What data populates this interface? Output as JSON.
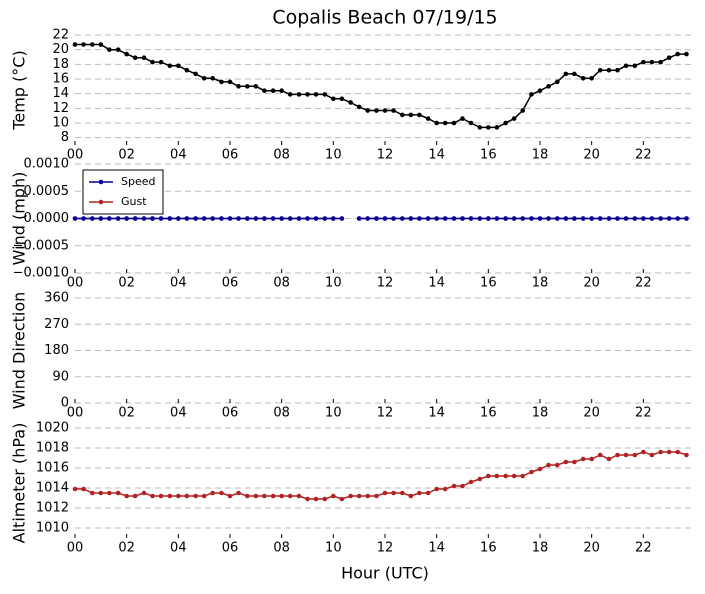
{
  "chart_data": [
    {
      "type": "line",
      "title": "Copalis Beach 07/19/15",
      "ylabel": "Temp (°C)",
      "x": [
        0,
        0.33,
        0.67,
        1,
        1.33,
        1.67,
        2,
        2.33,
        2.67,
        3,
        3.33,
        3.67,
        4,
        4.33,
        4.67,
        5,
        5.33,
        5.67,
        6,
        6.33,
        6.67,
        7,
        7.33,
        7.67,
        8,
        8.33,
        8.67,
        9,
        9.33,
        9.67,
        10,
        10.33,
        10.67,
        11,
        11.33,
        11.67,
        12,
        12.33,
        12.67,
        13,
        13.33,
        13.67,
        14,
        14.33,
        14.67,
        15,
        15.33,
        15.67,
        16,
        16.33,
        16.67,
        17,
        17.33,
        17.67,
        18,
        18.33,
        18.67,
        19,
        19.33,
        19.67,
        20,
        20.33,
        20.67,
        21,
        21.33,
        21.67,
        22,
        22.33,
        22.67,
        23,
        23.33,
        23.67
      ],
      "series": [
        {
          "name": "Temp",
          "color": "#000000",
          "values": [
            20.7,
            20.7,
            20.7,
            20.7,
            20.0,
            20.0,
            19.4,
            18.9,
            18.9,
            18.3,
            18.3,
            17.8,
            17.8,
            17.2,
            16.7,
            16.1,
            16.1,
            15.6,
            15.6,
            15.0,
            15.0,
            15.0,
            14.4,
            14.4,
            14.4,
            13.9,
            13.9,
            13.9,
            13.9,
            13.9,
            13.3,
            13.3,
            12.8,
            12.2,
            11.7,
            11.7,
            11.7,
            11.7,
            11.1,
            11.1,
            11.1,
            10.6,
            10.0,
            10.0,
            10.0,
            10.6,
            10.0,
            9.4,
            9.4,
            9.4,
            10.0,
            10.6,
            11.7,
            13.9,
            14.4,
            15.0,
            15.6,
            16.7,
            16.7,
            16.1,
            16.1,
            17.2,
            17.2,
            17.2,
            17.8,
            17.8,
            18.3,
            18.3,
            18.3,
            18.9,
            19.4,
            19.4
          ]
        }
      ],
      "xlim": [
        0,
        24
      ],
      "xticks": [
        {
          "value": 0,
          "label": "00"
        },
        {
          "value": 2,
          "label": "02"
        },
        {
          "value": 4,
          "label": "04"
        },
        {
          "value": 6,
          "label": "06"
        },
        {
          "value": 8,
          "label": "08"
        },
        10,
        12,
        14,
        16,
        18,
        20,
        22
      ],
      "ylim": [
        7,
        22
      ],
      "yticks": [
        8,
        10,
        12,
        14,
        16,
        18,
        20,
        22
      ],
      "grid": true
    },
    {
      "type": "line",
      "ylabel": "Wind (mph)",
      "legend": "upper left",
      "x": [
        0,
        0.33,
        0.67,
        1,
        1.33,
        1.67,
        2,
        2.33,
        2.67,
        3,
        3.33,
        3.67,
        4,
        4.33,
        4.67,
        5,
        5.33,
        5.67,
        6,
        6.33,
        6.67,
        7,
        7.33,
        7.67,
        8,
        8.33,
        8.67,
        9,
        9.33,
        9.67,
        10,
        10.33,
        10.67,
        11,
        11.33,
        11.67,
        12,
        12.33,
        12.67,
        13,
        13.33,
        13.67,
        14,
        14.33,
        14.67,
        15,
        15.33,
        15.67,
        16,
        16.33,
        16.67,
        17,
        17.33,
        17.67,
        18,
        18.33,
        18.67,
        19,
        19.33,
        19.67,
        20,
        20.33,
        20.67,
        21,
        21.33,
        21.67,
        22,
        22.33,
        22.67,
        23,
        23.33,
        23.67
      ],
      "series": [
        {
          "name": "Speed",
          "color": "#000099",
          "values": [
            0,
            0,
            0,
            0,
            0,
            0,
            0,
            0,
            0,
            0,
            0,
            0,
            0,
            0,
            0,
            0,
            0,
            0,
            0,
            0,
            0,
            0,
            0,
            0,
            0,
            0,
            0,
            0,
            0,
            0,
            0,
            0,
            null,
            0,
            0,
            0,
            0,
            0,
            0,
            0,
            0,
            0,
            0,
            0,
            0,
            0,
            0,
            0,
            0,
            0,
            0,
            0,
            0,
            0,
            0,
            0,
            0,
            0,
            0,
            0,
            0,
            0,
            0,
            0,
            0,
            0,
            0,
            0,
            0,
            0,
            0,
            0
          ]
        },
        {
          "name": "Gust",
          "color": "#b22222",
          "values": [
            0,
            0,
            0,
            0,
            0,
            0,
            0,
            0,
            0,
            0,
            0,
            0,
            0,
            0,
            0,
            0,
            0,
            0,
            0,
            0,
            0,
            0,
            0,
            0,
            0,
            0,
            0,
            0,
            0,
            0,
            0,
            0,
            null,
            0,
            0,
            0,
            0,
            0,
            0,
            0,
            0,
            0,
            0,
            0,
            0,
            0,
            0,
            0,
            0,
            0,
            0,
            0,
            0,
            0,
            0,
            0,
            0,
            0,
            0,
            0,
            0,
            0,
            0,
            0,
            0,
            0,
            0,
            0,
            0,
            0,
            0,
            0
          ]
        }
      ],
      "xlim": [
        0,
        24
      ],
      "xticks": [
        {
          "value": 0,
          "label": "00"
        },
        {
          "value": 2,
          "label": "02"
        },
        {
          "value": 4,
          "label": "04"
        },
        {
          "value": 6,
          "label": "06"
        },
        {
          "value": 8,
          "label": "08"
        },
        10,
        12,
        14,
        16,
        18,
        20,
        22
      ],
      "ylim": [
        -0.001,
        0.001
      ],
      "yticks": [
        {
          "value": -0.001,
          "label": "−0.0010"
        },
        {
          "value": -0.0005,
          "label": "−0.0005"
        },
        {
          "value": 0,
          "label": "0.0000"
        },
        {
          "value": 0.0005,
          "label": "0.0005"
        },
        {
          "value": 0.001,
          "label": "0.0010"
        }
      ],
      "grid": true
    },
    {
      "type": "line",
      "ylabel": "Wind Direction",
      "xlim": [
        0,
        24
      ],
      "xticks": [
        {
          "value": 0,
          "label": "00"
        },
        {
          "value": 2,
          "label": "02"
        },
        {
          "value": 4,
          "label": "04"
        },
        {
          "value": 6,
          "label": "06"
        },
        {
          "value": 8,
          "label": "08"
        },
        10,
        12,
        14,
        16,
        18,
        20,
        22
      ],
      "ylim": [
        0,
        360
      ],
      "yticks": [
        0,
        90,
        180,
        270,
        360
      ],
      "grid": true
    },
    {
      "type": "line",
      "ylabel": "Altimeter (hPa)",
      "xlabel": "Hour (UTC)",
      "x": [
        0,
        0.33,
        0.67,
        1,
        1.33,
        1.67,
        2,
        2.33,
        2.67,
        3,
        3.33,
        3.67,
        4,
        4.33,
        4.67,
        5,
        5.33,
        5.67,
        6,
        6.33,
        6.67,
        7,
        7.33,
        7.67,
        8,
        8.33,
        8.67,
        9,
        9.33,
        9.67,
        10,
        10.33,
        10.67,
        11,
        11.33,
        11.67,
        12,
        12.33,
        12.67,
        13,
        13.33,
        13.67,
        14,
        14.33,
        14.67,
        15,
        15.33,
        15.67,
        16,
        16.33,
        16.67,
        17,
        17.33,
        17.67,
        18,
        18.33,
        18.67,
        19,
        19.33,
        19.67,
        20,
        20.33,
        20.67,
        21,
        21.33,
        21.67,
        22,
        22.33,
        22.67,
        23,
        23.33,
        23.67
      ],
      "series": [
        {
          "name": "Altimeter",
          "color": "#b22222",
          "values": [
            1013.9,
            1013.9,
            1013.5,
            1013.5,
            1013.5,
            1013.5,
            1013.2,
            1013.2,
            1013.5,
            1013.2,
            1013.2,
            1013.2,
            1013.2,
            1013.2,
            1013.2,
            1013.2,
            1013.5,
            1013.5,
            1013.2,
            1013.5,
            1013.2,
            1013.2,
            1013.2,
            1013.2,
            1013.2,
            1013.2,
            1013.2,
            1012.9,
            1012.9,
            1012.9,
            1013.2,
            1012.9,
            1013.2,
            1013.2,
            1013.2,
            1013.2,
            1013.5,
            1013.5,
            1013.5,
            1013.2,
            1013.5,
            1013.5,
            1013.9,
            1013.9,
            1014.2,
            1014.2,
            1014.6,
            1014.9,
            1015.2,
            1015.2,
            1015.2,
            1015.2,
            1015.2,
            1015.6,
            1015.9,
            1016.3,
            1016.3,
            1016.6,
            1016.6,
            1016.9,
            1016.9,
            1017.3,
            1016.9,
            1017.3,
            1017.3,
            1017.3,
            1017.6,
            1017.3,
            1017.6,
            1017.6,
            1017.6,
            1017.3
          ]
        }
      ],
      "xlim": [
        0,
        24
      ],
      "xticks": [
        {
          "value": 0,
          "label": "00"
        },
        {
          "value": 2,
          "label": "02"
        },
        {
          "value": 4,
          "label": "04"
        },
        {
          "value": 6,
          "label": "06"
        },
        {
          "value": 8,
          "label": "08"
        },
        10,
        12,
        14,
        16,
        18,
        20,
        22
      ],
      "ylim": [
        1009,
        1020
      ],
      "yticks": [
        1010,
        1012,
        1014,
        1016,
        1018,
        1020
      ],
      "grid": true
    }
  ]
}
